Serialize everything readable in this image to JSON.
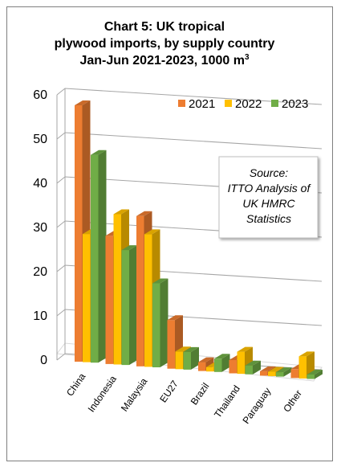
{
  "chart_data": {
    "type": "bar",
    "title_lines": [
      "Chart 5: UK tropical",
      "plywood imports, by supply country"
    ],
    "subtitle_text": "Jan-Jun 2021-2023, 1000 m",
    "subtitle_superscript": "3",
    "categories": [
      "China",
      "Indonesia",
      "Malaysia",
      "EU27",
      "Brazil",
      "Thailand",
      "Paraguay",
      "Other"
    ],
    "series": [
      {
        "name": "2021",
        "color": "#ed7d31",
        "values": [
          58,
          29,
          34,
          11,
          2,
          3,
          1,
          2
        ]
      },
      {
        "name": "2022",
        "color": "#ffc000",
        "values": [
          29,
          34,
          30,
          4,
          1,
          5,
          1,
          5
        ]
      },
      {
        "name": "2023",
        "color": "#70ad47",
        "values": [
          47,
          26,
          19,
          4,
          3,
          2,
          1,
          1
        ]
      }
    ],
    "ylim": [
      0,
      60
    ],
    "yticks": [
      0,
      10,
      20,
      30,
      40,
      50,
      60
    ],
    "grid": true,
    "legend_position": "top-right",
    "source_lines": [
      "Source:",
      "ITTO Analysis of",
      "UK HMRC",
      "Statistics"
    ]
  }
}
